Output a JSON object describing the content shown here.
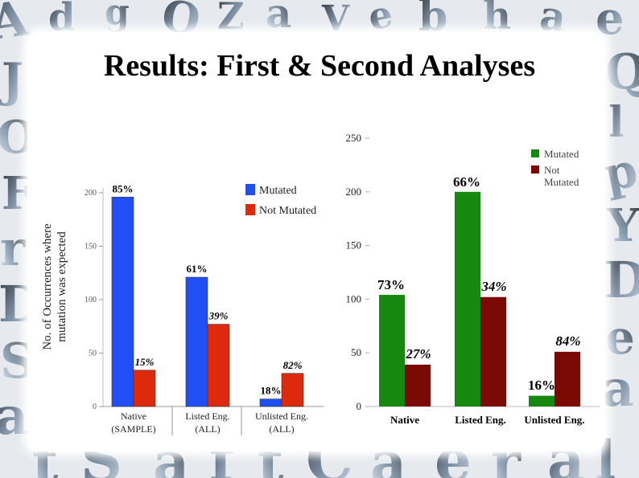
{
  "slide": {
    "title": "Results: First & Second Analyses"
  },
  "chart_data": [
    {
      "type": "bar",
      "ylabel": "No. of Occurrences where mutation was expected",
      "ylabel_lines": [
        "No. of Occurrences where",
        "mutation was expected"
      ],
      "ylim": [
        0,
        200
      ],
      "yticks": [
        0,
        50,
        100,
        150,
        200
      ],
      "categories": [
        [
          "Native",
          "(SAMPLE)"
        ],
        [
          "Listed Eng.",
          "(ALL)"
        ],
        [
          "Unlisted Eng.",
          "(ALL)"
        ]
      ],
      "series": [
        {
          "name": "Mutated",
          "color": "#1f4ff5",
          "values": [
            196,
            121,
            7
          ],
          "labels": [
            "85%",
            "61%",
            "18%"
          ]
        },
        {
          "name": "Not Mutated",
          "color": "#dd2a0c",
          "values": [
            34,
            77,
            31
          ],
          "labels": [
            "15%",
            "39%",
            "82%"
          ]
        }
      ],
      "legend": "top-right"
    },
    {
      "type": "bar",
      "ylim": [
        0,
        250
      ],
      "yticks": [
        0,
        50,
        100,
        150,
        200,
        250
      ],
      "categories": [
        "Native",
        "Listed Eng.",
        "Unlisted Eng."
      ],
      "series": [
        {
          "name": "Mutated",
          "color": "#16870f",
          "values": [
            104,
            200,
            10
          ],
          "labels": [
            "73%",
            "66%",
            "16%"
          ]
        },
        {
          "name": "Not Mutated",
          "color": "#7b0a05",
          "values": [
            39,
            102,
            51
          ],
          "labels": [
            "27%",
            "34%",
            "84%"
          ]
        }
      ],
      "legend_lines": [
        [
          "Mutated"
        ],
        [
          "Not",
          "Mutated"
        ]
      ],
      "legend": "top-right"
    }
  ]
}
